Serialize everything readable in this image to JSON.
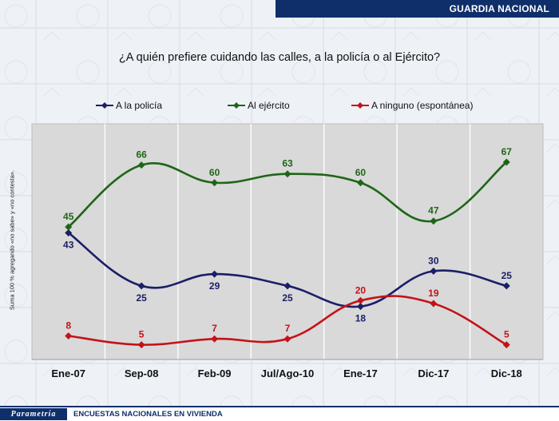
{
  "header": {
    "title": "GUARDIA NACIONAL"
  },
  "question": "¿A quién prefiere cuidando las calles, a la policía o al Ejército?",
  "y_note": "Suma 100 % agregando «no sabe» y «no contesta».",
  "footer": {
    "logo": "Parametría",
    "text": "ENCUESTAS NACIONALES EN VIVIENDA"
  },
  "colors": {
    "policia": "#1a1f66",
    "ejercito": "#1e6617",
    "ninguno": "#c41218",
    "plot_bg": "#d9d9d9",
    "header": "#0f2f6a"
  },
  "chart_data": {
    "type": "line",
    "categories": [
      "Ene-07",
      "Sep-08",
      "Feb-09",
      "Jul/Ago-10",
      "Ene-17",
      "Dic-17",
      "Dic-18"
    ],
    "series": [
      {
        "name": "A la policía",
        "values": [
          43,
          25,
          29,
          25,
          18,
          30,
          25
        ],
        "color": "#1a1f66"
      },
      {
        "name": "Al ejército",
        "values": [
          45,
          66,
          60,
          63,
          60,
          47,
          67
        ],
        "color": "#1e6617"
      },
      {
        "name": "A ninguno (espontánea)",
        "values": [
          8,
          5,
          7,
          7,
          20,
          19,
          5
        ],
        "color": "#c41218"
      }
    ],
    "ylim": [
      0,
      80
    ],
    "grid": "vertical",
    "legend": "top",
    "marker": "diamond",
    "smooth": true
  }
}
